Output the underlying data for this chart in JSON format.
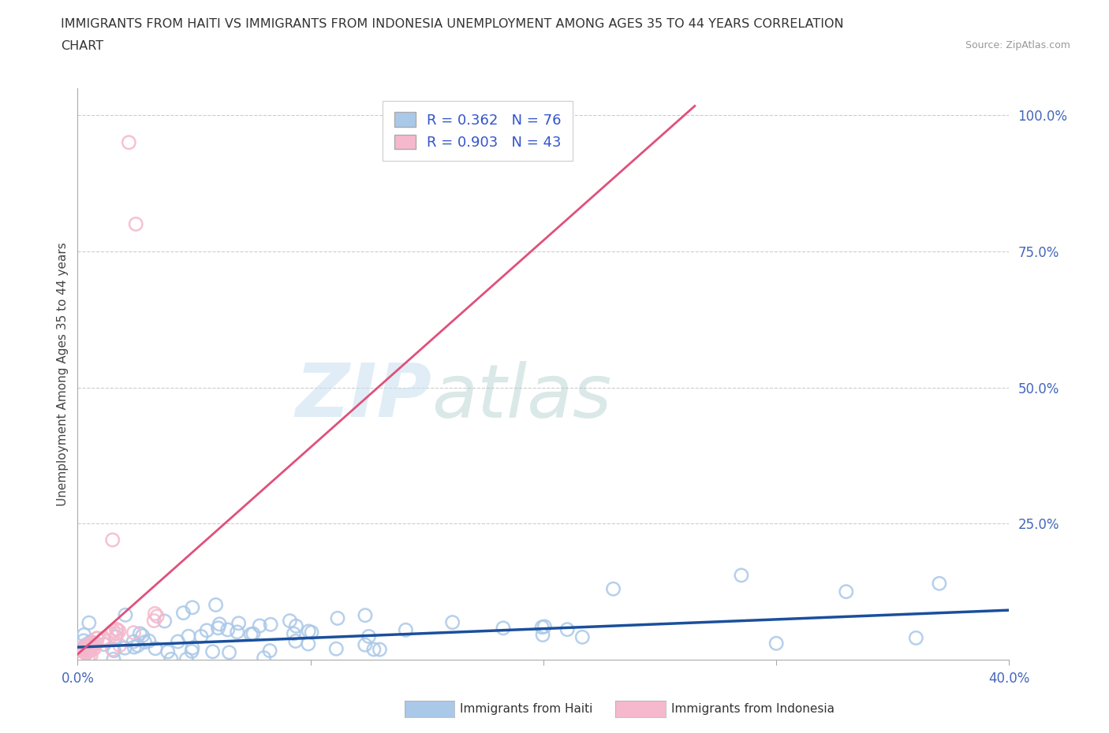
{
  "title_line1": "IMMIGRANTS FROM HAITI VS IMMIGRANTS FROM INDONESIA UNEMPLOYMENT AMONG AGES 35 TO 44 YEARS CORRELATION",
  "title_line2": "CHART",
  "source_text": "Source: ZipAtlas.com",
  "ylabel": "Unemployment Among Ages 35 to 44 years",
  "xlim": [
    0.0,
    0.4
  ],
  "ylim": [
    0.0,
    1.05
  ],
  "xtick_labels": [
    "0.0%",
    "",
    "",
    "",
    "40.0%"
  ],
  "xtick_values": [
    0.0,
    0.1,
    0.2,
    0.3,
    0.4
  ],
  "ytick_labels": [
    "25.0%",
    "50.0%",
    "75.0%",
    "100.0%"
  ],
  "ytick_values": [
    0.25,
    0.5,
    0.75,
    1.0
  ],
  "haiti_color": "#aac8e8",
  "haiti_edge_color": "#7aadd4",
  "haiti_line_color": "#1a4f9c",
  "indonesia_color": "#f5b8cc",
  "indonesia_edge_color": "#e890b0",
  "indonesia_line_color": "#e0507a",
  "haiti_R": 0.362,
  "haiti_N": 76,
  "indonesia_R": 0.903,
  "indonesia_N": 43,
  "legend_label_haiti": "Immigrants from Haiti",
  "legend_label_indonesia": "Immigrants from Indonesia",
  "watermark_zip": "ZIP",
  "watermark_atlas": "atlas",
  "background_color": "#ffffff",
  "grid_color": "#cccccc",
  "title_color": "#333333",
  "axis_label_color": "#4466bb",
  "ylabel_color": "#444444"
}
